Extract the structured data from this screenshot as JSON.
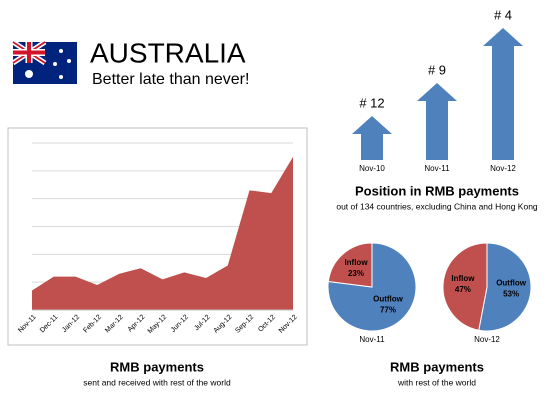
{
  "header": {
    "title": "AUSTRALIA",
    "subtitle": "Better late than never!"
  },
  "chart_data": [
    {
      "type": "area",
      "title": "RMB payments",
      "subtitle": "sent and received with rest of the world",
      "categories": [
        "Nov-11",
        "Dec-11",
        "Jan-12",
        "Feb-12",
        "Mar-12",
        "Apr-12",
        "May-12",
        "Jun-12",
        "Jul-12",
        "Aug-12",
        "Sep-12",
        "Oct-12",
        "Nov-12"
      ],
      "values": [
        0.7,
        1.2,
        1.2,
        0.9,
        1.3,
        1.5,
        1.1,
        1.35,
        1.15,
        1.6,
        4.3,
        4.2,
        5.5
      ],
      "color": "#c0504d",
      "ylim": [
        0,
        6
      ],
      "grid": true,
      "grid_lines": [
        1,
        2,
        3,
        4,
        5,
        6
      ]
    },
    {
      "type": "arrow",
      "title": "Position in RMB payments",
      "subtitle": "out of 134 countries, excluding China and Hong Kong",
      "categories": [
        "Nov-10",
        "Nov-11",
        "Nov-12"
      ],
      "values": [
        12,
        9,
        4
      ],
      "value_labels": [
        "# 12",
        "# 9",
        "# 4"
      ],
      "color": "#4f81bd",
      "ylim": [
        16,
        0
      ]
    },
    {
      "type": "pie",
      "title": "RMB payments",
      "subtitle": "with rest of the world",
      "pies": [
        {
          "label": "Nov-11",
          "categories": [
            "Inflow",
            "Outflow"
          ],
          "values": [
            23,
            77
          ],
          "value_labels": [
            "23%",
            "77%"
          ]
        },
        {
          "label": "Nov-12",
          "categories": [
            "Inflow",
            "Outflow"
          ],
          "values": [
            47,
            53
          ],
          "value_labels": [
            "47%",
            "53%"
          ]
        }
      ],
      "colors": [
        "#c0504d",
        "#4f81bd"
      ]
    }
  ]
}
